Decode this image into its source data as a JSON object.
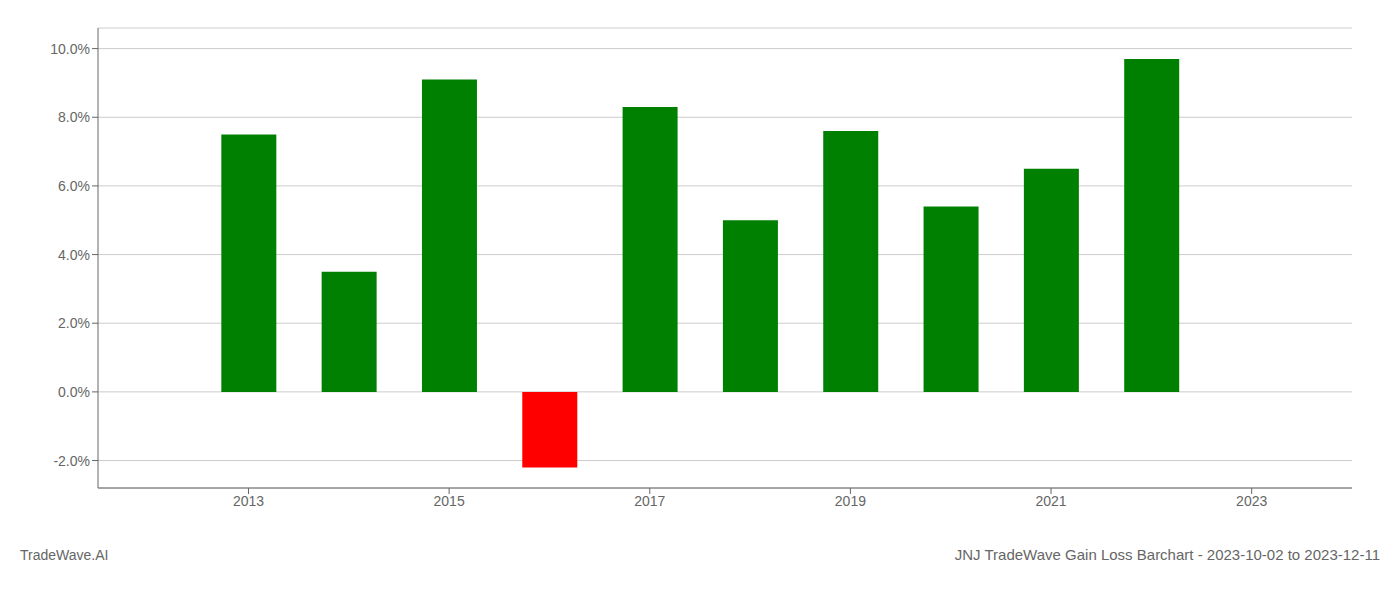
{
  "chart_data": {
    "type": "bar",
    "title": "JNJ TradeWave Gain Loss Barchart - 2023-10-02 to 2023-12-11",
    "annotations": [
      "TradeWave.AI"
    ],
    "x": [
      2013,
      2014,
      2015,
      2016,
      2017,
      2018,
      2019,
      2020,
      2021,
      2022
    ],
    "values": [
      0.075,
      0.035,
      0.091,
      -0.022,
      0.083,
      0.05,
      0.076,
      0.054,
      0.065,
      0.097
    ],
    "colors": [
      "#008000",
      "#008000",
      "#008000",
      "#ff0000",
      "#008000",
      "#008000",
      "#008000",
      "#008000",
      "#008000",
      "#008000"
    ],
    "xlim": [
      2011.5,
      2024.0
    ],
    "xticks": [
      2013,
      2015,
      2017,
      2019,
      2021,
      2023
    ],
    "ylim": [
      -0.028,
      0.106
    ],
    "yticks": [
      {
        "value": -0.02,
        "label": "-2.0%"
      },
      {
        "value": 0.0,
        "label": "0.0%"
      },
      {
        "value": 0.02,
        "label": "2.0%"
      },
      {
        "value": 0.04,
        "label": "4.0%"
      },
      {
        "value": 0.06,
        "label": "6.0%"
      },
      {
        "value": 0.08,
        "label": "8.0%"
      },
      {
        "value": 0.1,
        "label": "10.0%"
      }
    ],
    "grid": true
  }
}
